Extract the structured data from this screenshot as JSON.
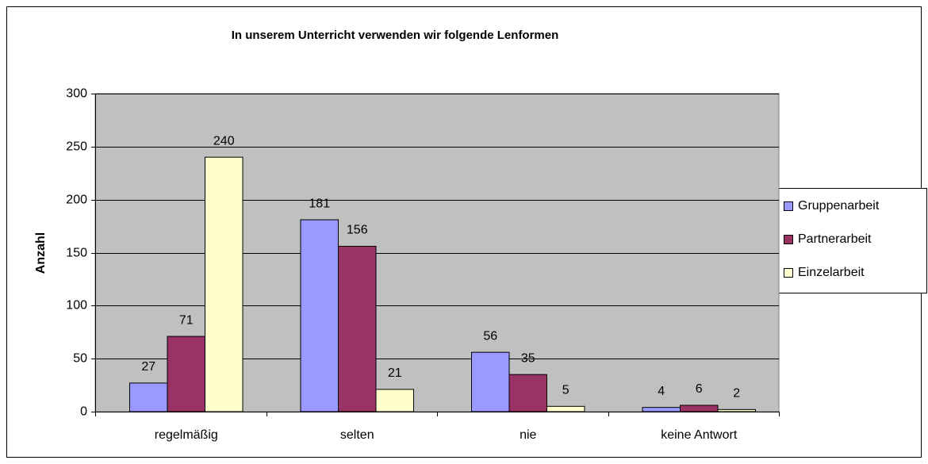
{
  "chart_data": {
    "type": "bar",
    "title": "In unserem Unterricht verwenden wir folgende Lenformen",
    "y_label": "Anzahl",
    "categories": [
      "regelmäßig",
      "selten",
      "nie",
      "keine Antwort"
    ],
    "series": [
      {
        "name": "Gruppenarbeit",
        "color": "#9999ff",
        "values": [
          27,
          181,
          56,
          4
        ]
      },
      {
        "name": "Partnerarbeit",
        "color": "#993366",
        "values": [
          71,
          156,
          35,
          6
        ]
      },
      {
        "name": "Einzelarbeit",
        "color": "#ffffcc",
        "values": [
          240,
          21,
          5,
          2
        ]
      }
    ],
    "ylim": [
      0,
      300
    ],
    "yticks": [
      0,
      50,
      100,
      150,
      200,
      250,
      300
    ],
    "grid": true,
    "legend": "right",
    "plot_background": "#c0c0c0"
  }
}
